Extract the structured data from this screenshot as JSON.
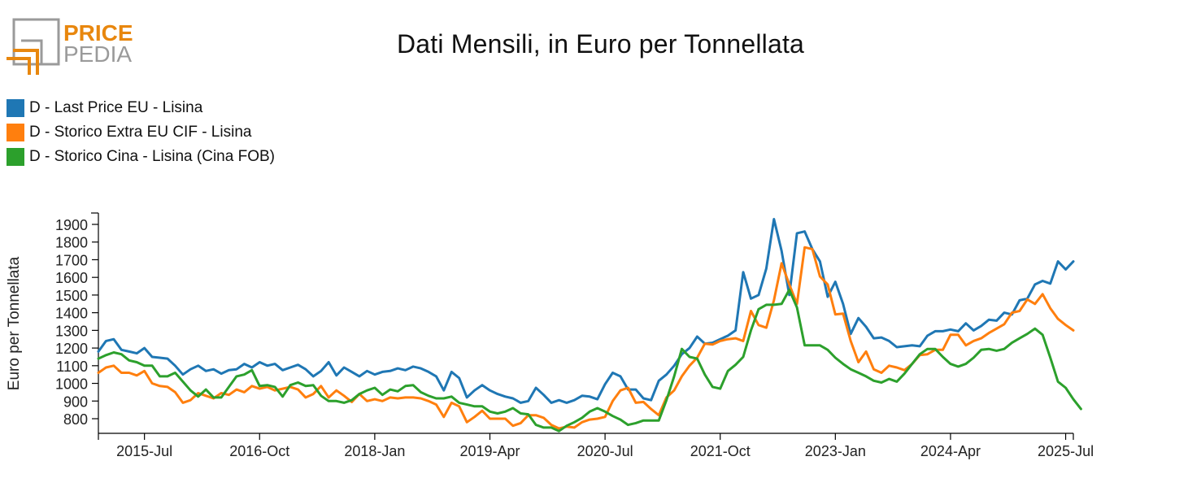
{
  "logo": {
    "line1": "PRICE",
    "line2": "PEDIA"
  },
  "colors": {
    "blue": "#1f77b4",
    "orange": "#ff7f0e",
    "green": "#2ca02c",
    "logo_orange": "#e8870e",
    "logo_gray": "#9a9a9a"
  },
  "chart_data": {
    "type": "line",
    "title": "Dati Mensili, in Euro per Tonnellata",
    "ylabel": "Euro per Tonnellata",
    "xlabel": "",
    "ylim": [
      720,
      1950
    ],
    "y_ticks": [
      800,
      900,
      1000,
      1100,
      1200,
      1300,
      1400,
      1500,
      1600,
      1700,
      1800,
      1900
    ],
    "x_tick_labels": [
      "2015-Jul",
      "2016-Oct",
      "2018-Jan",
      "2019-Apr",
      "2020-Jul",
      "2021-Oct",
      "2023-Jan",
      "2024-Apr",
      "2025-Jul"
    ],
    "x_start": "2015-Jan",
    "x_end": "2025-Jul",
    "legend_position": "top-left",
    "series": [
      {
        "name": "D - Last Price EU - Lisina",
        "color": "#1f77b4",
        "values": [
          1180,
          1240,
          1250,
          1190,
          1180,
          1170,
          1200,
          1150,
          1145,
          1140,
          1100,
          1050,
          1080,
          1100,
          1070,
          1080,
          1055,
          1075,
          1080,
          1110,
          1090,
          1120,
          1100,
          1110,
          1075,
          1090,
          1105,
          1080,
          1040,
          1070,
          1120,
          1045,
          1090,
          1065,
          1040,
          1070,
          1050,
          1065,
          1070,
          1085,
          1075,
          1095,
          1085,
          1065,
          1040,
          960,
          1065,
          1030,
          920,
          960,
          990,
          960,
          940,
          925,
          915,
          890,
          900,
          975,
          935,
          890,
          905,
          890,
          905,
          930,
          925,
          910,
          995,
          1060,
          1040,
          965,
          965,
          915,
          905,
          1015,
          1050,
          1100,
          1165,
          1200,
          1265,
          1225,
          1230,
          1250,
          1270,
          1300,
          1630,
          1480,
          1500,
          1650,
          1930,
          1750,
          1500,
          1850,
          1860,
          1760,
          1690,
          1490,
          1575,
          1450,
          1280,
          1370,
          1320,
          1255,
          1260,
          1240,
          1205,
          1210,
          1215,
          1210,
          1270,
          1295,
          1295,
          1305,
          1295,
          1340,
          1300,
          1325,
          1360,
          1355,
          1400,
          1390,
          1470,
          1480,
          1560,
          1580,
          1565,
          1690,
          1645,
          1690
        ]
      },
      {
        "name": "D - Storico Extra EU CIF - Lisina",
        "color": "#ff7f0e",
        "values": [
          1060,
          1090,
          1100,
          1060,
          1060,
          1045,
          1070,
          1000,
          985,
          980,
          950,
          890,
          905,
          945,
          930,
          915,
          945,
          935,
          965,
          950,
          985,
          970,
          980,
          960,
          970,
          980,
          965,
          920,
          940,
          985,
          920,
          960,
          930,
          895,
          940,
          900,
          910,
          900,
          920,
          915,
          920,
          920,
          915,
          900,
          880,
          810,
          890,
          870,
          780,
          810,
          845,
          800,
          800,
          800,
          760,
          775,
          820,
          820,
          805,
          765,
          745,
          755,
          750,
          780,
          795,
          800,
          810,
          900,
          960,
          975,
          890,
          895,
          855,
          820,
          920,
          960,
          1040,
          1100,
          1145,
          1225,
          1220,
          1240,
          1250,
          1255,
          1240,
          1410,
          1330,
          1315,
          1470,
          1680,
          1560,
          1450,
          1770,
          1760,
          1605,
          1560,
          1390,
          1395,
          1240,
          1120,
          1180,
          1080,
          1060,
          1100,
          1090,
          1075,
          1110,
          1160,
          1165,
          1190,
          1190,
          1275,
          1275,
          1215,
          1240,
          1255,
          1285,
          1310,
          1335,
          1400,
          1410,
          1475,
          1450,
          1505,
          1425,
          1365,
          1330,
          1300
        ]
      },
      {
        "name": "D - Storico Cina - Lisina (Cina FOB)",
        "color": "#2ca02c",
        "values": [
          1140,
          1160,
          1175,
          1165,
          1130,
          1120,
          1100,
          1100,
          1040,
          1040,
          1060,
          1010,
          960,
          925,
          965,
          920,
          920,
          980,
          1040,
          1050,
          1075,
          985,
          990,
          980,
          925,
          990,
          1005,
          985,
          990,
          930,
          900,
          900,
          890,
          905,
          940,
          960,
          975,
          935,
          965,
          955,
          985,
          990,
          950,
          930,
          915,
          915,
          925,
          890,
          880,
          870,
          870,
          840,
          830,
          840,
          860,
          830,
          825,
          765,
          750,
          750,
          730,
          760,
          780,
          805,
          840,
          860,
          840,
          815,
          795,
          765,
          775,
          790,
          790,
          790,
          905,
          1040,
          1195,
          1150,
          1140,
          1050,
          980,
          970,
          1070,
          1105,
          1150,
          1300,
          1420,
          1445,
          1445,
          1450,
          1530,
          1430,
          1215,
          1215,
          1215,
          1190,
          1145,
          1110,
          1080,
          1060,
          1040,
          1015,
          1005,
          1025,
          1010,
          1055,
          1110,
          1165,
          1195,
          1195,
          1150,
          1110,
          1095,
          1110,
          1145,
          1190,
          1195,
          1185,
          1195,
          1230,
          1255,
          1280,
          1310,
          1275,
          1145,
          1010,
          975,
          910,
          855
        ]
      }
    ]
  }
}
